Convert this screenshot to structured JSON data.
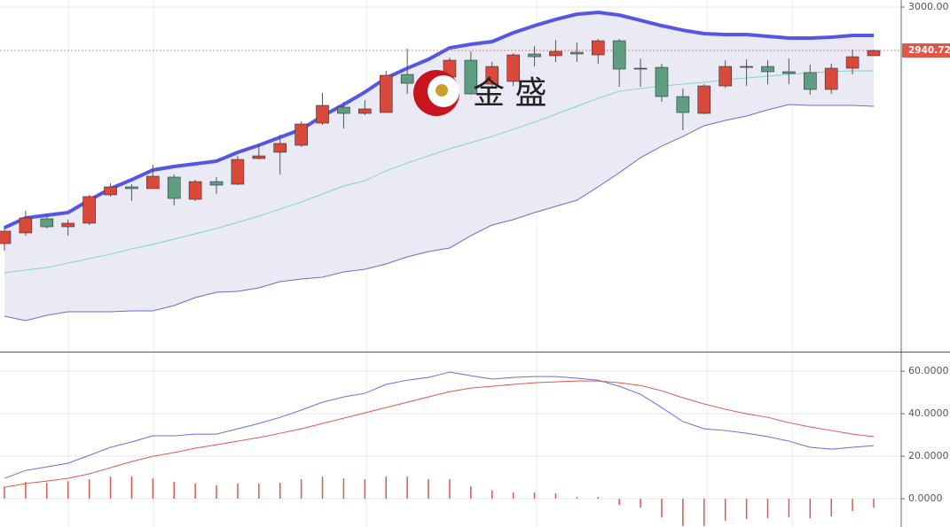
{
  "chart_data": [
    {
      "type": "candlestick",
      "watermark": "金 盛",
      "open": [
        2676.9,
        2691.5,
        2710.8,
        2699.9,
        2704.8,
        2743.5,
        2754.4,
        2752.0,
        2767.7,
        2737.4,
        2761.6,
        2758.0,
        2793.1,
        2801.6,
        2811.2,
        2841.5,
        2863.3,
        2854.8,
        2856.0,
        2908.0,
        2895.9,
        2904.4,
        2927.4,
        2894.7,
        2898.4,
        2935.9,
        2933.5,
        2938.3,
        2934.7,
        2954.0,
        2915.3,
        2917.7,
        2877.8,
        2854.8,
        2892.3,
        2917.7,
        2918.9,
        2911.7,
        2910.5,
        2887.5,
        2916.5,
        2933.5
      ],
      "high": [
        2701.1,
        2721.7,
        2713.2,
        2709.6,
        2743.5,
        2759.2,
        2758.0,
        2784.6,
        2771.3,
        2764.1,
        2767.7,
        2796.7,
        2812.5,
        2825.8,
        2843.9,
        2882.6,
        2870.5,
        2873.0,
        2912.9,
        2943.1,
        2908.0,
        2931.0,
        2939.5,
        2925.0,
        2937.1,
        2946.8,
        2955.2,
        2951.6,
        2956.4,
        2956.4,
        2929.8,
        2922.6,
        2888.7,
        2894.7,
        2927.4,
        2928.6,
        2927.4,
        2929.8,
        2921.4,
        2922.6,
        2941.9,
        2941.9
      ],
      "low": [
        2667.3,
        2687.8,
        2697.5,
        2687.8,
        2702.3,
        2741.1,
        2735.0,
        2752.0,
        2729.0,
        2735.0,
        2744.7,
        2756.8,
        2791.9,
        2771.3,
        2808.8,
        2839.1,
        2834.2,
        2852.4,
        2856.0,
        2881.4,
        2893.5,
        2888.7,
        2880.2,
        2892.3,
        2892.3,
        2918.9,
        2925.0,
        2925.0,
        2922.6,
        2891.1,
        2891.1,
        2870.5,
        2831.8,
        2853.6,
        2889.9,
        2892.3,
        2894.7,
        2894.7,
        2880.2,
        2881.4,
        2908.0,
        2933.5
      ],
      "close": [
        2693.9,
        2712.0,
        2699.9,
        2704.8,
        2741.1,
        2754.4,
        2752.0,
        2768.9,
        2738.6,
        2761.6,
        2756.8,
        2791.9,
        2796.7,
        2813.7,
        2840.3,
        2865.7,
        2854.8,
        2860.9,
        2906.8,
        2895.9,
        2903.2,
        2927.4,
        2881.4,
        2918.9,
        2934.7,
        2932.2,
        2939.5,
        2935.9,
        2954.0,
        2915.3,
        2916.5,
        2877.8,
        2856.0,
        2892.3,
        2918.9,
        2918.9,
        2911.7,
        2909.3,
        2887.5,
        2916.5,
        2932.2,
        2940.72
      ],
      "upper": [
        2698.7,
        2712.0,
        2715.7,
        2719.3,
        2736.2,
        2752.0,
        2764.1,
        2777.4,
        2782.2,
        2785.8,
        2789.5,
        2801.6,
        2811.2,
        2822.1,
        2833.0,
        2851.2,
        2866.9,
        2883.8,
        2903.2,
        2916.5,
        2928.6,
        2944.3,
        2949.2,
        2952.8,
        2964.9,
        2974.6,
        2983.1,
        2990.3,
        2992.7,
        2989.1,
        2981.9,
        2974.6,
        2968.5,
        2963.7,
        2962.5,
        2962.5,
        2960.1,
        2957.7,
        2957.7,
        2958.9,
        2961.3,
        2961.3
      ],
      "middle": [
        2637.0,
        2640.6,
        2644.3,
        2650.3,
        2656.4,
        2662.4,
        2669.7,
        2675.7,
        2683.0,
        2690.2,
        2697.5,
        2706.0,
        2714.4,
        2724.1,
        2733.8,
        2744.7,
        2755.6,
        2762.8,
        2776.2,
        2787.0,
        2796.7,
        2806.4,
        2814.9,
        2823.3,
        2833.0,
        2842.7,
        2853.6,
        2864.5,
        2875.4,
        2885.1,
        2888.7,
        2892.3,
        2894.7,
        2897.2,
        2900.8,
        2903.2,
        2905.6,
        2908.0,
        2910.5,
        2911.7,
        2912.9,
        2912.9
      ],
      "lower": [
        2577.7,
        2571.7,
        2578.9,
        2583.8,
        2583.8,
        2583.8,
        2585.0,
        2585.0,
        2592.2,
        2603.1,
        2610.4,
        2611.6,
        2616.4,
        2624.9,
        2628.5,
        2631.0,
        2638.2,
        2641.8,
        2649.1,
        2658.8,
        2666.0,
        2670.9,
        2687.8,
        2702.3,
        2709.6,
        2719.3,
        2727.8,
        2736.2,
        2754.4,
        2773.7,
        2794.3,
        2810.0,
        2823.3,
        2837.9,
        2845.1,
        2851.2,
        2859.6,
        2866.9,
        2865.7,
        2865.7,
        2865.7,
        2864.5
      ],
      "last_price": 2940.72,
      "ylim": [
        2529.3,
        3009.7
      ],
      "yticks": [
        {
          "value": 3000,
          "label": "3000.00"
        }
      ],
      "colors": {
        "up": "#d9483b",
        "down": "#5e9e80",
        "upper": "#5555e6",
        "middle": "#7fd6c8",
        "lower": "#6a6ae0",
        "band": "#e6e6f3",
        "last": "#e0574a"
      }
    },
    {
      "type": "macd",
      "dif": [
        9.6,
        13.3,
        15.0,
        16.7,
        20.4,
        24.2,
        26.7,
        29.6,
        29.6,
        30.4,
        30.4,
        32.9,
        35.4,
        38.3,
        41.7,
        45.4,
        47.9,
        49.6,
        53.8,
        55.8,
        57.1,
        59.6,
        57.9,
        56.3,
        57.1,
        57.5,
        57.5,
        56.7,
        55.8,
        52.9,
        49.2,
        42.9,
        36.3,
        32.9,
        32.1,
        30.8,
        29.2,
        27.1,
        24.2,
        23.3,
        24.2,
        25.0
      ],
      "dea": [
        5.4,
        7.1,
        8.3,
        9.6,
        11.7,
        14.6,
        17.5,
        20.0,
        21.7,
        23.8,
        25.4,
        27.1,
        28.8,
        30.8,
        32.9,
        35.4,
        37.9,
        40.4,
        42.9,
        45.4,
        47.9,
        50.4,
        52.1,
        52.9,
        53.8,
        54.6,
        55.0,
        55.4,
        55.4,
        54.6,
        53.3,
        50.8,
        47.5,
        44.6,
        42.1,
        40.0,
        38.3,
        35.8,
        33.8,
        32.1,
        30.4,
        29.2
      ],
      "histogram": [
        5.8,
        7.9,
        7.5,
        8.3,
        9.2,
        10.4,
        10.4,
        9.6,
        7.9,
        7.1,
        6.3,
        7.1,
        7.1,
        7.5,
        9.2,
        10.4,
        9.6,
        9.2,
        10.4,
        10.4,
        9.2,
        9.2,
        5.8,
        3.8,
        2.9,
        2.9,
        2.5,
        0.8,
        0.8,
        -2.9,
        -4.2,
        -8.8,
        -12.9,
        -12.9,
        -10.4,
        -9.6,
        -9.2,
        -8.8,
        -9.2,
        -8.3,
        -5.8,
        -4.2
      ],
      "ylim": [
        -13.3,
        68.8
      ],
      "yticks": [
        {
          "value": 0,
          "label": "0.0000"
        },
        {
          "value": 20,
          "label": "20.0000"
        },
        {
          "value": 40,
          "label": "40.0000"
        },
        {
          "value": 60,
          "label": "60.0000"
        }
      ],
      "colors": {
        "dif": "#6b6be0",
        "dea": "#e0574a",
        "histogram": "#e0574a"
      }
    }
  ]
}
